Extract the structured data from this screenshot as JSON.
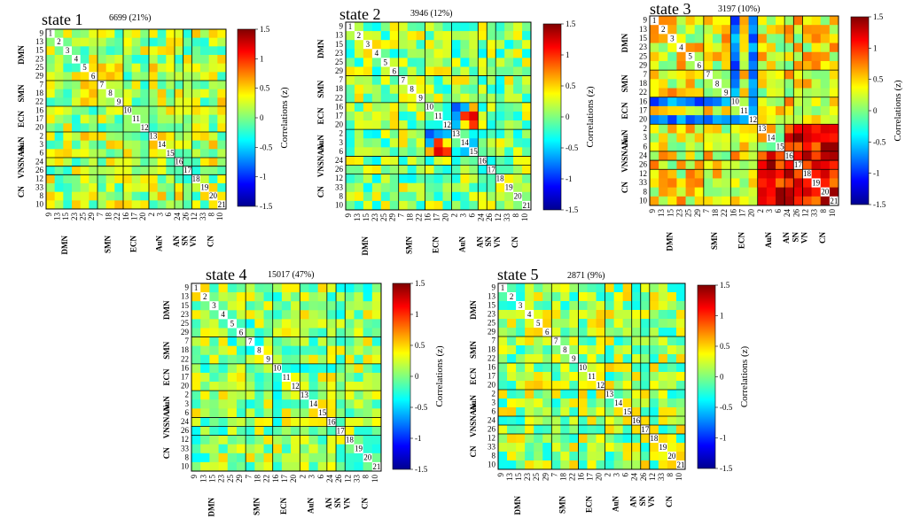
{
  "roi_labels": [
    "9",
    "13",
    "15",
    "23",
    "25",
    "29",
    "7",
    "18",
    "22",
    "16",
    "17",
    "20",
    "2",
    "3",
    "6",
    "24",
    "26",
    "12",
    "33",
    "8",
    "10"
  ],
  "network_labels": [
    "DMN",
    "SMN",
    "ECN",
    "AuN",
    "AN",
    "SN",
    "VN",
    "CN"
  ],
  "colorbar": {
    "label": "Correlations (z)",
    "ticks": [
      "1.5",
      "1",
      "0.5",
      "0",
      "-0.5",
      "-1",
      "-1.5"
    ],
    "min": -1.5,
    "max": 1.5
  },
  "chart_data": [
    {
      "type": "heatmap",
      "title": "state 1",
      "count": "6699 (21%)"
    },
    {
      "type": "heatmap",
      "title": "state 2",
      "count": "3946 (12%)"
    },
    {
      "type": "heatmap",
      "title": "state 3",
      "count": "3197 (10%)"
    },
    {
      "type": "heatmap",
      "title": "state 4",
      "count": "15017 (47%)"
    },
    {
      "type": "heatmap",
      "title": "state 5",
      "count": "2871 (9%)"
    }
  ]
}
